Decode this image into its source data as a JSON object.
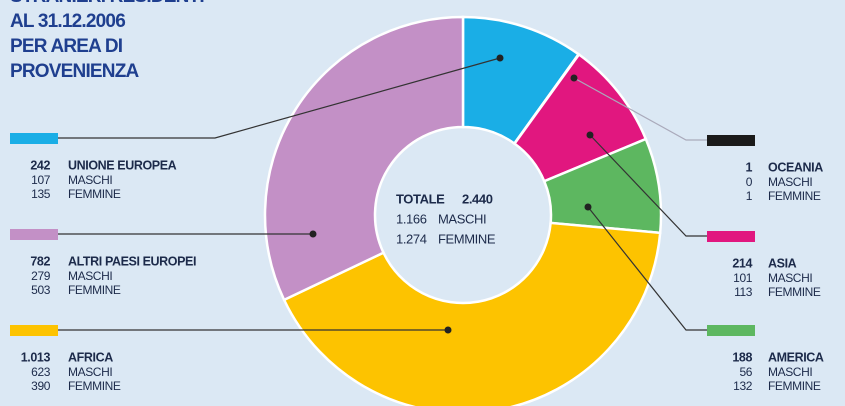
{
  "chart_data": {
    "type": "donut",
    "title": [
      "STRANIERI RESIDENTI",
      "AL 31.12.2006",
      "PER AREA DI",
      "PROVENIENZA"
    ],
    "categories": [
      "UNIONE EUROPEA",
      "OCEANIA",
      "ASIA",
      "AMERICA",
      "AFRICA",
      "ALTRI PAESI EUROPEI"
    ],
    "values": [
      242,
      1,
      214,
      188,
      1013,
      782
    ],
    "value_labels": [
      "242",
      "1",
      "214",
      "188",
      "1.013",
      "782"
    ],
    "colors": [
      "#1aaee6",
      "#1a1a1a",
      "#e1177f",
      "#5db760",
      "#fdc300",
      "#c390c6"
    ],
    "series": [
      {
        "name": "MASCHI",
        "values": [
          107,
          0,
          101,
          56,
          623,
          279
        ]
      },
      {
        "name": "FEMMINE",
        "values": [
          135,
          1,
          113,
          132,
          390,
          503
        ]
      }
    ],
    "center": {
      "title": "TOTALE",
      "total": 2440,
      "total_label": "2.440",
      "males": 1166,
      "males_label": "1.166",
      "females": 1274,
      "females_label": "1.274"
    }
  }
}
